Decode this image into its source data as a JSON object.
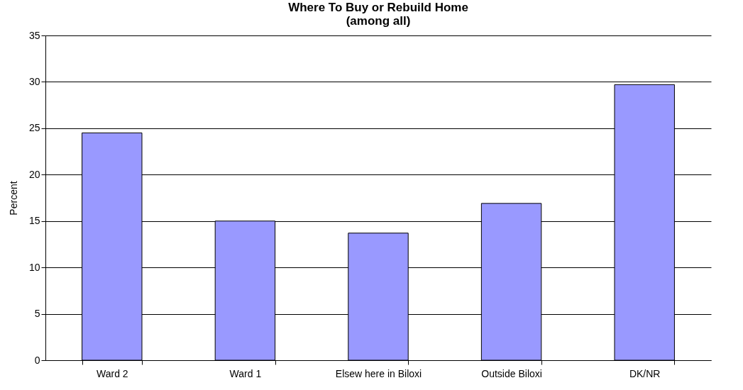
{
  "chart_data": {
    "type": "bar",
    "title": "Where To Buy or Rebuild Home",
    "subtitle": "(among all)",
    "ylabel": "Percent",
    "categories": [
      "Ward 2",
      "Ward 1",
      "Elsew here in Biloxi",
      "Outside Biloxi",
      "DK/NR"
    ],
    "values": [
      24.5,
      15,
      13.7,
      16.9,
      29.7
    ],
    "color": "#9999ff",
    "ylim": [
      0,
      35
    ],
    "yticks": [
      0,
      5,
      10,
      15,
      20,
      25,
      30,
      35
    ],
    "grid": "y"
  }
}
